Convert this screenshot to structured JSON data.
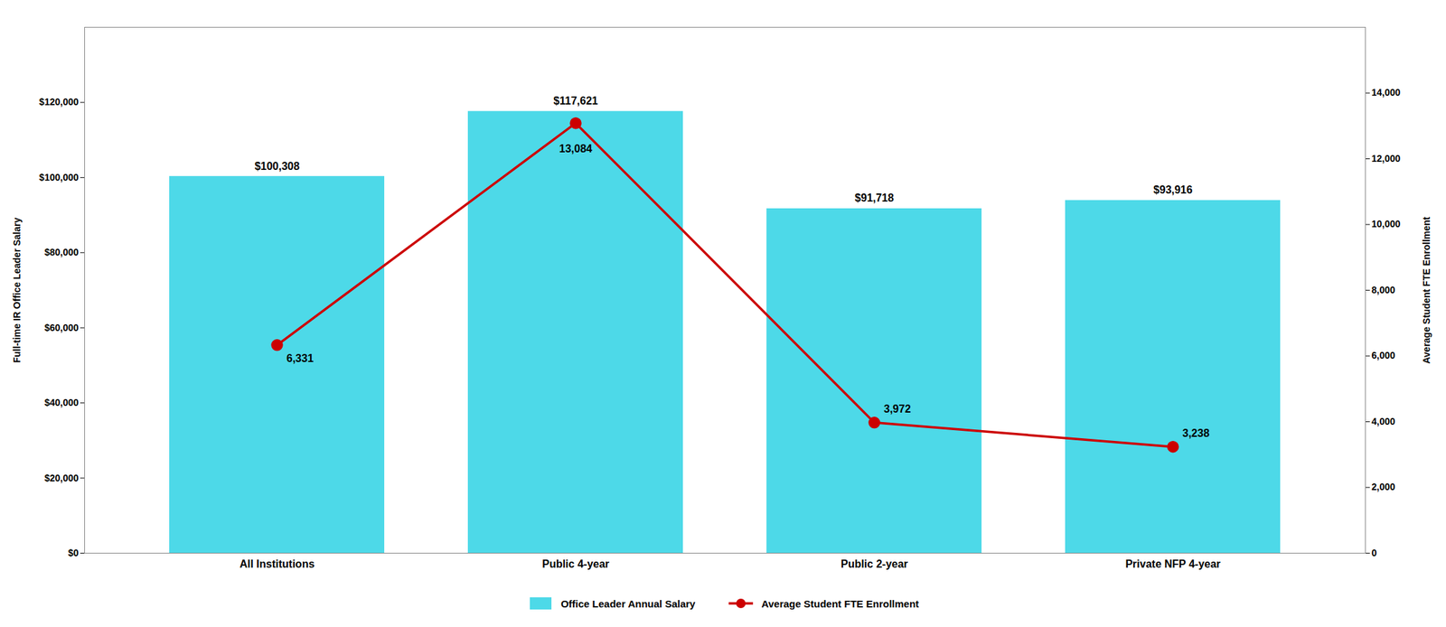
{
  "chart_data": {
    "type": "bar",
    "categories": [
      "All Institutions",
      "Public 4-year",
      "Public 2-year",
      "Private NFP 4-year"
    ],
    "series": [
      {
        "name": "Office Leader Annual Salary",
        "type": "bar",
        "color": "#4DD9E8",
        "values": [
          100308,
          117621,
          91718,
          93916
        ],
        "value_labels": [
          "$100,308",
          "$117,621",
          "$91,718",
          "$93,916"
        ]
      },
      {
        "name": "Average Student FTE Enrollment",
        "type": "line",
        "color": "#CC0000",
        "marker": "circle",
        "axis": "y2",
        "values": [
          6331,
          13084,
          3972,
          3238
        ],
        "value_labels": [
          "6,331",
          "13,084",
          "3,972",
          "3,238"
        ]
      }
    ],
    "ylabel": "Full-time IR Office Leader Salary",
    "y2label": "Average Student FTE Enrollment",
    "ylim": [
      0,
      140000
    ],
    "yticks": [
      {
        "value": 0,
        "label": "$0"
      },
      {
        "value": 20000,
        "label": "$20,000"
      },
      {
        "value": 40000,
        "label": "$40,000"
      },
      {
        "value": 60000,
        "label": "$60,000"
      },
      {
        "value": 80000,
        "label": "$80,000"
      },
      {
        "value": 100000,
        "label": "$100,000"
      },
      {
        "value": 120000,
        "label": "$120,000"
      }
    ],
    "y2lim": [
      0,
      16000
    ],
    "y2ticks": [
      0,
      {
        "value": 2000,
        "label": "2,000"
      },
      {
        "value": 4000,
        "label": "4,000"
      },
      {
        "value": 6000,
        "label": "6,000"
      },
      {
        "value": 8000,
        "label": "8,000"
      },
      {
        "value": 10000,
        "label": "10,000"
      },
      {
        "value": 12000,
        "label": "12,000"
      },
      {
        "value": 14000,
        "label": "14,000"
      }
    ],
    "data_labels": true,
    "legend": "bottom",
    "grid": false
  }
}
